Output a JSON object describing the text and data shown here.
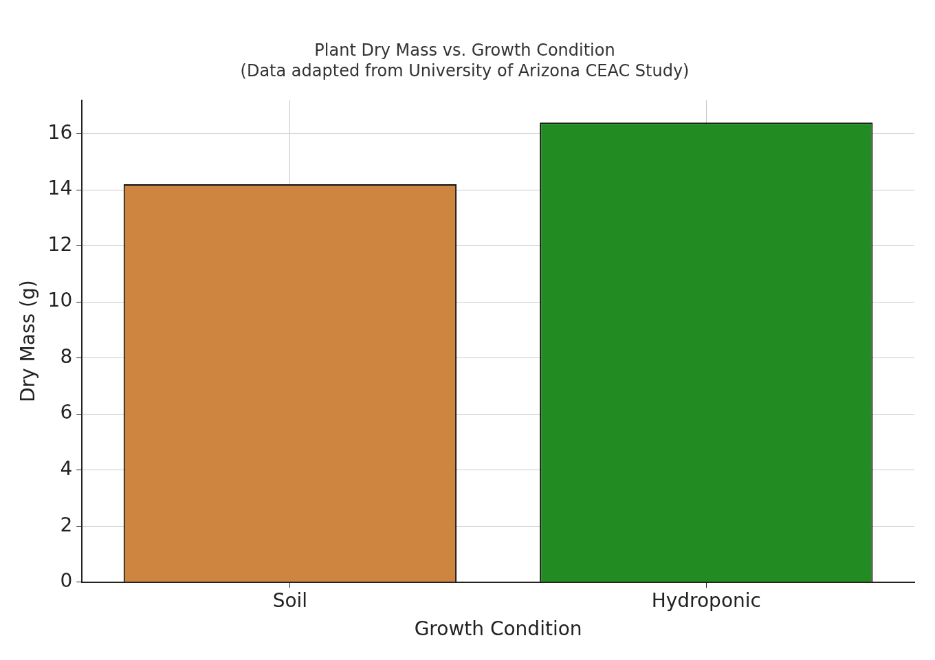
{
  "chart_data": {
    "type": "bar",
    "title": "Plant Dry Mass vs. Growth Condition",
    "subtitle": "(Data adapted from University of Arizona CEAC Study)",
    "xlabel": "Growth Condition",
    "ylabel": "Dry Mass (g)",
    "categories": [
      "Soil",
      "Hydroponic"
    ],
    "values": [
      14.2,
      16.4
    ],
    "colors": [
      "#cd853f",
      "#228b22"
    ],
    "ylim": [
      0,
      17.2
    ],
    "yticks": [
      0,
      2,
      4,
      6,
      8,
      10,
      12,
      14,
      16
    ],
    "grid": true
  }
}
